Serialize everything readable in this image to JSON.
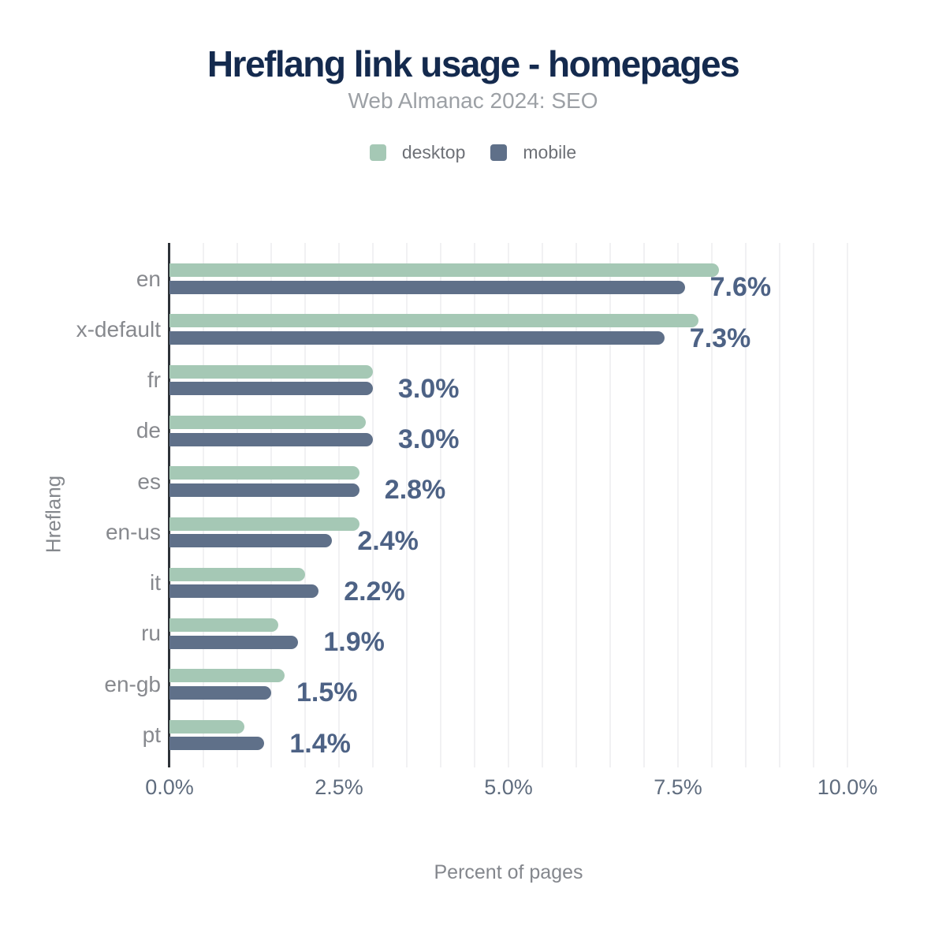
{
  "header": {
    "title": "Hreflang link usage - homepages",
    "subtitle": "Web Almanac 2024: SEO"
  },
  "axes": {
    "xlabel": "Percent of pages",
    "ylabel": "Hreflang"
  },
  "legend": [
    {
      "label": "desktop",
      "color": "#a5c8b5"
    },
    {
      "label": "mobile",
      "color": "#5f7089"
    }
  ],
  "colors": {
    "desktop_series": "#a5c8b5",
    "mobile_series": "#5f7089",
    "title_text": "#142a4e",
    "value_label_text": "#4d6285",
    "gridline": "#f1f1f3",
    "axis_line": "#2e3338"
  },
  "chart_data": {
    "type": "bar",
    "orientation": "horizontal",
    "title": "Hreflang link usage - homepages",
    "subtitle": "Web Almanac 2024: SEO",
    "xlabel": "Percent of pages",
    "ylabel": "Hreflang",
    "categories": [
      "en",
      "x-default",
      "fr",
      "de",
      "es",
      "en-us",
      "it",
      "ru",
      "en-gb",
      "pt"
    ],
    "series": [
      {
        "name": "desktop",
        "color": "#a5c8b5",
        "values": [
          8.1,
          7.8,
          3.0,
          2.9,
          2.8,
          2.8,
          2.0,
          1.6,
          1.7,
          1.1
        ]
      },
      {
        "name": "mobile",
        "color": "#5f7089",
        "values": [
          7.6,
          7.3,
          3.0,
          3.0,
          2.8,
          2.4,
          2.2,
          1.9,
          1.5,
          1.4
        ]
      }
    ],
    "value_labels": [
      "7.6%",
      "7.3%",
      "3.0%",
      "3.0%",
      "2.8%",
      "2.4%",
      "2.2%",
      "1.9%",
      "1.5%",
      "1.4%"
    ],
    "value_labels_source": "mobile",
    "x_ticks": [
      "0.0%",
      "2.5%",
      "5.0%",
      "7.5%",
      "10.0%"
    ],
    "x_tick_values": [
      0,
      2.5,
      5,
      7.5,
      10
    ],
    "xlim": [
      0,
      10
    ],
    "grid": "vertical",
    "grid_step": 0.5,
    "legend_position": "top"
  }
}
